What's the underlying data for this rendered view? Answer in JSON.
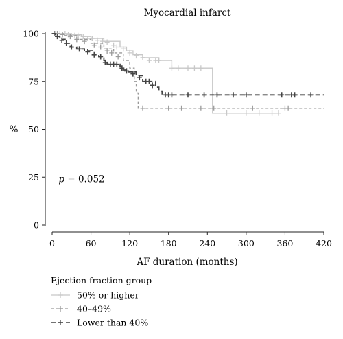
{
  "chart_data": {
    "type": "line",
    "title": "Myocardial infarct",
    "xlabel": "AF duration (months)",
    "ylabel": "%",
    "xlim": [
      0,
      420
    ],
    "ylim": [
      0,
      100
    ],
    "xticks": [
      0,
      60,
      120,
      180,
      240,
      300,
      360,
      420
    ],
    "yticks": [
      0,
      25,
      50,
      75,
      100
    ],
    "annotation": {
      "italic": "p",
      "rest": " = 0.052",
      "x": 10,
      "y": 25
    },
    "legend_title": "Ejection fraction group",
    "series": [
      {
        "name": "50% or higher",
        "color": "#c8c8c8",
        "dash": "solid",
        "steps": [
          [
            0,
            100
          ],
          [
            15,
            100
          ],
          [
            30,
            99.5
          ],
          [
            45,
            98.5
          ],
          [
            60,
            97.5
          ],
          [
            80,
            96
          ],
          [
            105,
            93
          ],
          [
            115,
            91
          ],
          [
            125,
            89
          ],
          [
            140,
            87.5
          ],
          [
            165,
            86
          ],
          [
            185,
            82
          ],
          [
            248,
            82
          ],
          [
            248,
            58.5
          ],
          [
            350,
            58.5
          ]
        ],
        "censor": [
          [
            5,
            100
          ],
          [
            12,
            100
          ],
          [
            20,
            100
          ],
          [
            25,
            99.5
          ],
          [
            35,
            99
          ],
          [
            40,
            99
          ],
          [
            48,
            98.5
          ],
          [
            55,
            97.5
          ],
          [
            62,
            97.5
          ],
          [
            70,
            96.5
          ],
          [
            78,
            96
          ],
          [
            85,
            95.5
          ],
          [
            95,
            94
          ],
          [
            100,
            93
          ],
          [
            110,
            92
          ],
          [
            120,
            90
          ],
          [
            130,
            88.5
          ],
          [
            140,
            87.5
          ],
          [
            150,
            86
          ],
          [
            160,
            86
          ],
          [
            165,
            86
          ],
          [
            185,
            82
          ],
          [
            195,
            82
          ],
          [
            210,
            82
          ],
          [
            220,
            82
          ],
          [
            230,
            82
          ],
          [
            270,
            58.5
          ],
          [
            300,
            58.5
          ],
          [
            320,
            58.5
          ],
          [
            340,
            58.5
          ],
          [
            350,
            58.5
          ]
        ]
      },
      {
        "name": "40–49%",
        "color": "#9a9a9a",
        "dash": "4,3",
        "steps": [
          [
            0,
            100
          ],
          [
            20,
            99
          ],
          [
            40,
            97
          ],
          [
            60,
            95
          ],
          [
            80,
            92
          ],
          [
            95,
            90
          ],
          [
            110,
            86
          ],
          [
            120,
            82
          ],
          [
            127,
            75
          ],
          [
            130,
            69
          ],
          [
            133,
            61
          ],
          [
            420,
            61
          ]
        ],
        "censor": [
          [
            8,
            100
          ],
          [
            16,
            99.5
          ],
          [
            28,
            98.5
          ],
          [
            38,
            97
          ],
          [
            50,
            96
          ],
          [
            65,
            94
          ],
          [
            75,
            93
          ],
          [
            85,
            91
          ],
          [
            92,
            90
          ],
          [
            102,
            88
          ],
          [
            125,
            79
          ],
          [
            140,
            61
          ],
          [
            180,
            61
          ],
          [
            200,
            61
          ],
          [
            230,
            61
          ],
          [
            250,
            61
          ],
          [
            310,
            61
          ],
          [
            360,
            61
          ],
          [
            365,
            61
          ]
        ]
      },
      {
        "name": "Lower than 40%",
        "color": "#444444",
        "dash": "7,4",
        "steps": [
          [
            0,
            100
          ],
          [
            5,
            98.5
          ],
          [
            12,
            97
          ],
          [
            20,
            95
          ],
          [
            28,
            93
          ],
          [
            38,
            92
          ],
          [
            50,
            91
          ],
          [
            62,
            89
          ],
          [
            72,
            88
          ],
          [
            80,
            86
          ],
          [
            85,
            84
          ],
          [
            105,
            83
          ],
          [
            110,
            81
          ],
          [
            118,
            80
          ],
          [
            130,
            78
          ],
          [
            140,
            75
          ],
          [
            160,
            72
          ],
          [
            165,
            70
          ],
          [
            170,
            68
          ],
          [
            420,
            68
          ]
        ],
        "censor": [
          [
            3,
            100
          ],
          [
            8,
            98.5
          ],
          [
            15,
            96.5
          ],
          [
            22,
            95
          ],
          [
            30,
            93
          ],
          [
            42,
            92
          ],
          [
            55,
            90.5
          ],
          [
            65,
            89
          ],
          [
            75,
            88
          ],
          [
            82,
            85
          ],
          [
            90,
            84
          ],
          [
            95,
            84
          ],
          [
            100,
            84
          ],
          [
            108,
            82
          ],
          [
            115,
            80.5
          ],
          [
            125,
            79
          ],
          [
            135,
            77
          ],
          [
            145,
            75
          ],
          [
            150,
            75
          ],
          [
            155,
            73
          ],
          [
            175,
            68
          ],
          [
            180,
            68
          ],
          [
            185,
            68
          ],
          [
            210,
            68
          ],
          [
            235,
            68
          ],
          [
            255,
            68
          ],
          [
            280,
            68
          ],
          [
            300,
            68
          ],
          [
            355,
            68
          ],
          [
            370,
            68
          ],
          [
            375,
            68
          ],
          [
            400,
            68
          ]
        ]
      }
    ]
  }
}
